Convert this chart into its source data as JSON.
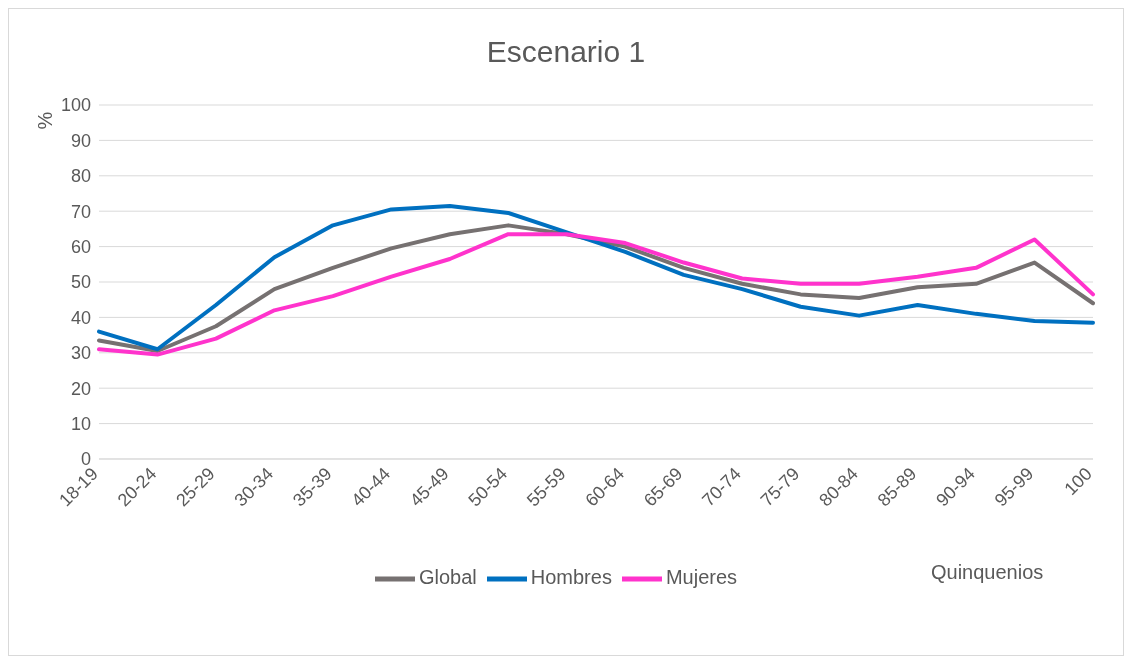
{
  "chart_data": {
    "type": "line",
    "title": "Escenario 1",
    "ylabel": "%",
    "xlabel": "Quinquenios",
    "categories": [
      "18-19",
      "20-24",
      "25-29",
      "30-34",
      "35-39",
      "40-44",
      "45-49",
      "50-54",
      "55-59",
      "60-64",
      "65-69",
      "70-74",
      "75-79",
      "80-84",
      "85-89",
      "90-94",
      "95-99",
      "100"
    ],
    "series": [
      {
        "name": "Global",
        "color": "#767171",
        "values": [
          33.5,
          30.5,
          37.5,
          48,
          54,
          59.5,
          63.5,
          66,
          63.5,
          60,
          54,
          49.5,
          46.5,
          45.5,
          48.5,
          49.5,
          55.5,
          44
        ]
      },
      {
        "name": "Hombres",
        "color": "#0070c0",
        "values": [
          36,
          31,
          43.5,
          57,
          66,
          70.5,
          71.5,
          69.5,
          64,
          58.5,
          52,
          48,
          43,
          40.5,
          43.5,
          41,
          39,
          38.5
        ]
      },
      {
        "name": "Mujeres",
        "color": "#ff33cc",
        "values": [
          31,
          29.5,
          34,
          42,
          46,
          51.5,
          56.5,
          63.5,
          63.5,
          61,
          55.5,
          51,
          49.5,
          49.5,
          51.5,
          54,
          62,
          46.5
        ]
      }
    ],
    "ylim": [
      0,
      100
    ],
    "yticks": [
      0,
      10,
      20,
      30,
      40,
      50,
      60,
      70,
      80,
      90,
      100
    ],
    "grid": "y",
    "legend": "bottom",
    "marker": "none",
    "line_style": "solid"
  }
}
